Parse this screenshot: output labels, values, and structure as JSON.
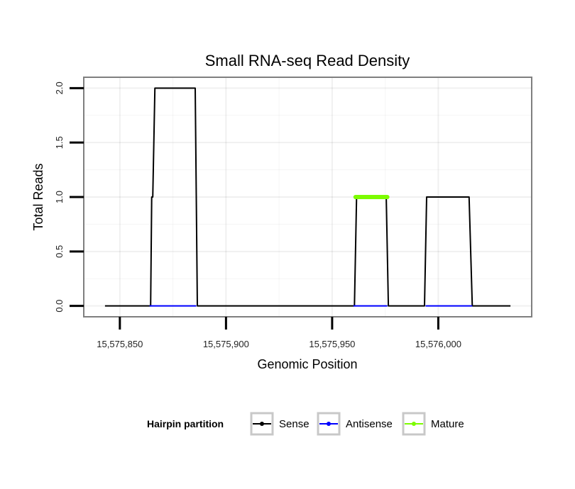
{
  "chart_data": {
    "type": "line",
    "title": "Small RNA-seq Read Density",
    "xlabel": "Genomic Position",
    "ylabel": "Total Reads",
    "xlim": [
      15575833,
      15576044
    ],
    "ylim": [
      -0.1,
      2.1
    ],
    "xticks": [
      15575850,
      15575900,
      15575950,
      15576000
    ],
    "xtick_labels": [
      "15,575,850",
      "15,575,900",
      "15,575,950",
      "15,576,000"
    ],
    "yticks": [
      0,
      0.5,
      1,
      1.5,
      2
    ],
    "ytick_labels": [
      "0.0",
      "0.5",
      "1.0",
      "1.5",
      "2.0"
    ],
    "grid": true,
    "legend_position": "bottom",
    "legend_title": "Hairpin partition",
    "series": [
      {
        "name": "Sense",
        "color": "#000000",
        "x": [
          15575843,
          15575864.5,
          15575865,
          15575865.5,
          15575866.5,
          15575885.5,
          15575886.5,
          15575960.5,
          15575961.5,
          15575975.5,
          15575976.5,
          15575993.5,
          15575994.5,
          15576014.5,
          15576016,
          15576034
        ],
        "y": [
          0,
          0,
          1,
          1,
          2,
          2,
          0,
          0,
          1,
          1,
          0,
          0,
          1,
          1,
          0,
          0
        ]
      },
      {
        "name": "Antisense",
        "color": "#0000ff",
        "segments": [
          [
            15575864,
            15575886
          ],
          [
            15575960,
            15575976
          ],
          [
            15575994,
            15576016
          ]
        ],
        "y": 0
      },
      {
        "name": "Mature",
        "color": "#7cfc00",
        "x": [
          15575961,
          15575976
        ],
        "y": [
          1,
          1
        ]
      }
    ]
  }
}
